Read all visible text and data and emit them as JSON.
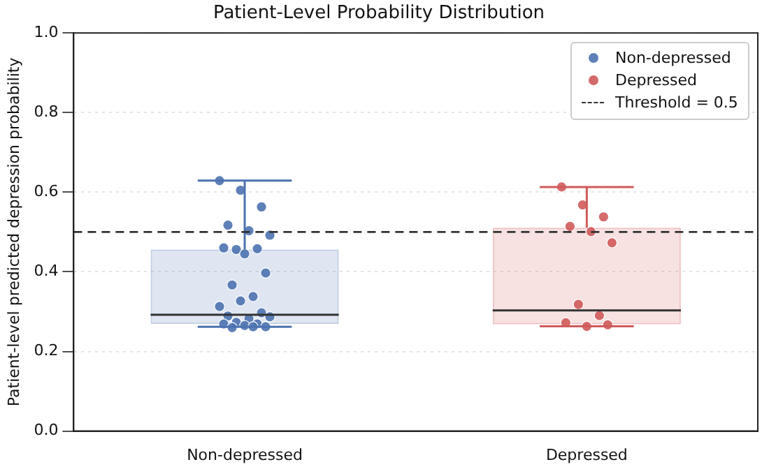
{
  "chart_data": {
    "type": "box",
    "title": "Patient-Level Probability Distribution",
    "ylabel": "Patient-level predicted depression probability",
    "categories": [
      "Non-depressed",
      "Depressed"
    ],
    "boxes": [
      {
        "low": 0.262,
        "q1": 0.269,
        "median": 0.292,
        "q3": 0.456,
        "high": 0.629
      },
      {
        "low": 0.263,
        "q1": 0.268,
        "median": 0.303,
        "q3": 0.511,
        "high": 0.613
      }
    ],
    "colors": [
      "#4c72b0",
      "#d05a5a"
    ],
    "series": [
      {
        "name": "Non-depressed",
        "type": "scatter",
        "color": "#4c72b0",
        "x": [
          "Non-depressed",
          "Non-depressed",
          "Non-depressed",
          "Non-depressed",
          "Non-depressed",
          "Non-depressed",
          "Non-depressed",
          "Non-depressed",
          "Non-depressed",
          "Non-depressed",
          "Non-depressed",
          "Non-depressed",
          "Non-depressed",
          "Non-depressed",
          "Non-depressed",
          "Non-depressed",
          "Non-depressed",
          "Non-depressed",
          "Non-depressed",
          "Non-depressed",
          "Non-depressed",
          "Non-depressed",
          "Non-depressed",
          "Non-depressed",
          "Non-depressed",
          "Non-depressed"
        ],
        "values": [
          0.629,
          0.605,
          0.563,
          0.517,
          0.503,
          0.492,
          0.456,
          0.458,
          0.46,
          0.445,
          0.397,
          0.367,
          0.338,
          0.313,
          0.327,
          0.297,
          0.289,
          0.282,
          0.287,
          0.273,
          0.269,
          0.269,
          0.265,
          0.262,
          0.26,
          0.262
        ]
      },
      {
        "name": "Depressed",
        "type": "scatter",
        "color": "#d05a5a",
        "x": [
          "Depressed",
          "Depressed",
          "Depressed",
          "Depressed",
          "Depressed",
          "Depressed",
          "Depressed",
          "Depressed",
          "Depressed",
          "Depressed",
          "Depressed"
        ],
        "values": [
          0.613,
          0.568,
          0.538,
          0.514,
          0.501,
          0.473,
          0.318,
          0.29,
          0.272,
          0.263,
          0.267
        ]
      }
    ],
    "ref_lines": [
      {
        "axis": "y",
        "value": 0.5,
        "label": "Threshold = 0.5",
        "color": "#333333",
        "line_style": "dashed"
      }
    ],
    "ylim": [
      0,
      1
    ],
    "yticks": [
      {
        "value": 0,
        "label": "0.0"
      },
      0.2,
      0.4,
      0.6,
      0.8,
      {
        "value": 1,
        "label": "1.0"
      }
    ],
    "grid": "y",
    "legend": "top right",
    "marker": "circle"
  }
}
